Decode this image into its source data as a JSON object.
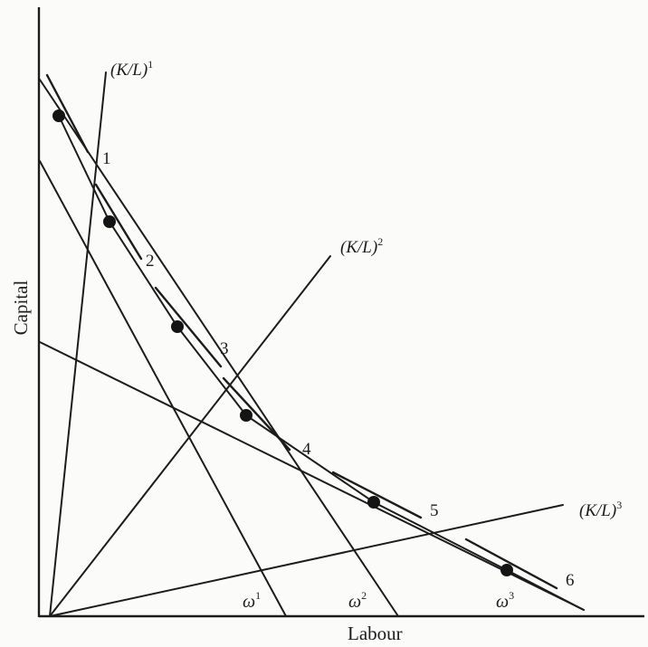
{
  "axes": {
    "x_label": "Labour",
    "y_label": "Capital"
  },
  "rays": [
    {
      "name": "(K/L)",
      "superscript": "1"
    },
    {
      "name": "(K/L)",
      "superscript": "2"
    },
    {
      "name": "(K/L)",
      "superscript": "3"
    }
  ],
  "isocost": [
    {
      "name": "ω",
      "superscript": "1"
    },
    {
      "name": "ω",
      "superscript": "2"
    },
    {
      "name": "ω",
      "superscript": "3"
    }
  ],
  "points": [
    "1",
    "2",
    "3",
    "4",
    "5",
    "6"
  ]
}
